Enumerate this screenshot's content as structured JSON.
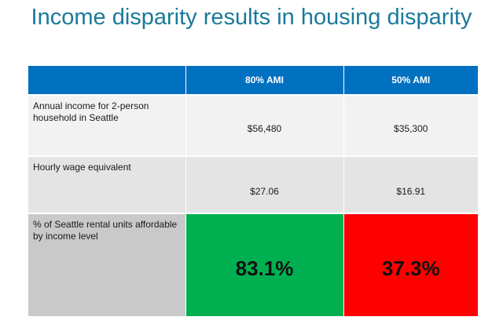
{
  "title": "Income disparity results in housing disparity",
  "table": {
    "headers": [
      "",
      "80% AMI",
      "50% AMI"
    ],
    "rows": [
      {
        "label": "Annual income for 2-person household in Seattle",
        "values": [
          "$56,480",
          "$35,300"
        ]
      },
      {
        "label": "Hourly wage equivalent",
        "values": [
          "$27.06",
          "$16.91"
        ]
      },
      {
        "label": "% of Seattle rental units affordable by income level",
        "values": [
          "83.1%",
          "37.3%"
        ]
      }
    ]
  },
  "colors": {
    "title": "#1a7a9a",
    "header_bg": "#0070c0",
    "good": "#00b050",
    "bad": "#ff0000"
  }
}
